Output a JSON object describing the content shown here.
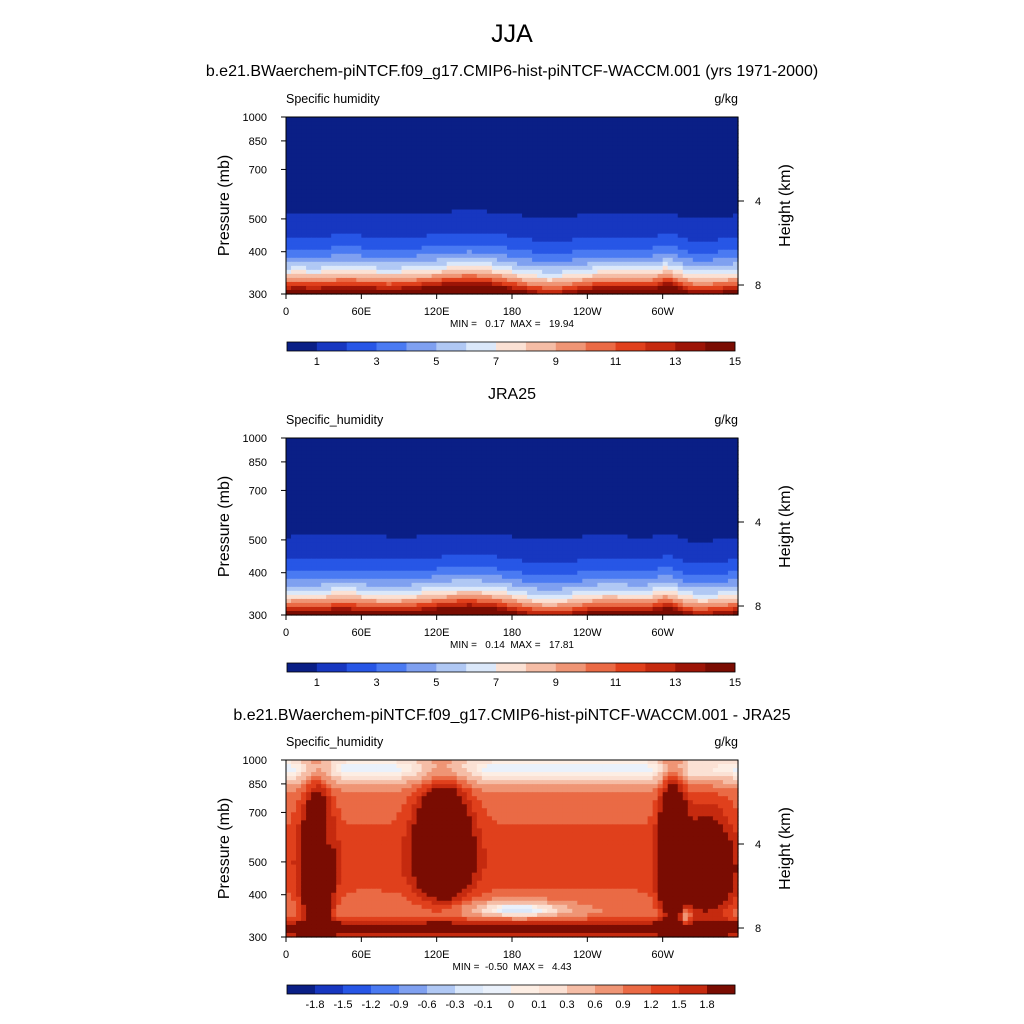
{
  "figure_title": "JJA",
  "chart_data": [
    {
      "type": "heatmap",
      "title": "b.e21.BWaerchem-piNTCF.f09_g17.CMIP6-hist-piNTCF-WACCM.001 (yrs 1971-2000)",
      "left_label": "Specific humidity",
      "units": "g/kg",
      "ylabel": "Pressure (mb)",
      "ylabel_right": "Height (km)",
      "y_ticks": [
        "300",
        "400",
        "500",
        "700",
        "850",
        "1000"
      ],
      "y_tick_values": [
        300,
        400,
        500,
        700,
        850,
        1000
      ],
      "right_ticks": [
        "8",
        "4"
      ],
      "right_tick_values": [
        8,
        4
      ],
      "x_ticks": [
        "0",
        "60E",
        "120E",
        "180",
        "120W",
        "60W"
      ],
      "x_tick_values": [
        0,
        60,
        120,
        180,
        240,
        300
      ],
      "xlim": [
        0,
        360
      ],
      "ylim": [
        1000,
        300
      ],
      "stats": "MIN =   0.17  MAX =   19.94",
      "min": 0.17,
      "max": 19.94,
      "kind": "abs",
      "colorbar": {
        "labels": [
          "1",
          "3",
          "5",
          "7",
          "9",
          "11",
          "13",
          "15"
        ],
        "colors": [
          "#0a1f86",
          "#1737c0",
          "#2756e6",
          "#4a7af2",
          "#7fa0f0",
          "#b0c8f4",
          "#dbe8fa",
          "#fbe1d4",
          "#f5bda6",
          "#ef9575",
          "#ea6a45",
          "#e0401c",
          "#c52a0f",
          "#9c1406",
          "#7a0c02"
        ]
      }
    },
    {
      "type": "heatmap",
      "title": "JRA25",
      "left_label": "Specific_humidity",
      "units": "g/kg",
      "ylabel": "Pressure (mb)",
      "ylabel_right": "Height (km)",
      "y_ticks": [
        "300",
        "400",
        "500",
        "700",
        "850",
        "1000"
      ],
      "y_tick_values": [
        300,
        400,
        500,
        700,
        850,
        1000
      ],
      "right_ticks": [
        "8",
        "4"
      ],
      "right_tick_values": [
        8,
        4
      ],
      "x_ticks": [
        "0",
        "60E",
        "120E",
        "180",
        "120W",
        "60W"
      ],
      "x_tick_values": [
        0,
        60,
        120,
        180,
        240,
        300
      ],
      "xlim": [
        0,
        360
      ],
      "ylim": [
        1000,
        300
      ],
      "stats": "MIN =   0.14  MAX =   17.81",
      "min": 0.14,
      "max": 17.81,
      "kind": "abs",
      "colorbar": {
        "labels": [
          "1",
          "3",
          "5",
          "7",
          "9",
          "11",
          "13",
          "15"
        ],
        "colors": [
          "#0a1f86",
          "#1737c0",
          "#2756e6",
          "#4a7af2",
          "#7fa0f0",
          "#b0c8f4",
          "#dbe8fa",
          "#fbe1d4",
          "#f5bda6",
          "#ef9575",
          "#ea6a45",
          "#e0401c",
          "#c52a0f",
          "#9c1406",
          "#7a0c02"
        ]
      }
    },
    {
      "type": "heatmap",
      "title": "b.e21.BWaerchem-piNTCF.f09_g17.CMIP6-hist-piNTCF-WACCM.001 - JRA25",
      "left_label": "Specific_humidity",
      "units": "g/kg",
      "ylabel": "Pressure (mb)",
      "ylabel_right": "Height (km)",
      "y_ticks": [
        "300",
        "400",
        "500",
        "700",
        "850",
        "1000"
      ],
      "y_tick_values": [
        300,
        400,
        500,
        700,
        850,
        1000
      ],
      "right_ticks": [
        "8",
        "4"
      ],
      "right_tick_values": [
        8,
        4
      ],
      "x_ticks": [
        "0",
        "60E",
        "120E",
        "180",
        "120W",
        "60W"
      ],
      "x_tick_values": [
        0,
        60,
        120,
        180,
        240,
        300
      ],
      "xlim": [
        0,
        360
      ],
      "ylim": [
        1000,
        300
      ],
      "stats": "MIN =  -0.50  MAX =   4.43",
      "min": -0.5,
      "max": 4.43,
      "kind": "diff",
      "colorbar": {
        "labels": [
          "-1.8",
          "-1.5",
          "-1.2",
          "-0.9",
          "-0.6",
          "-0.3",
          "-0.1",
          "0",
          "0.1",
          "0.3",
          "0.6",
          "0.9",
          "1.2",
          "1.5",
          "1.8"
        ],
        "colors": [
          "#0a1f86",
          "#1737c0",
          "#2756e6",
          "#4a7af2",
          "#7fa0f0",
          "#b0c8f4",
          "#dbe8fa",
          "#eaf1fb",
          "#fdeee4",
          "#fbe1d4",
          "#f5bda6",
          "#ef9575",
          "#ea6a45",
          "#e0401c",
          "#c52a0f",
          "#7a0c02"
        ]
      }
    }
  ]
}
